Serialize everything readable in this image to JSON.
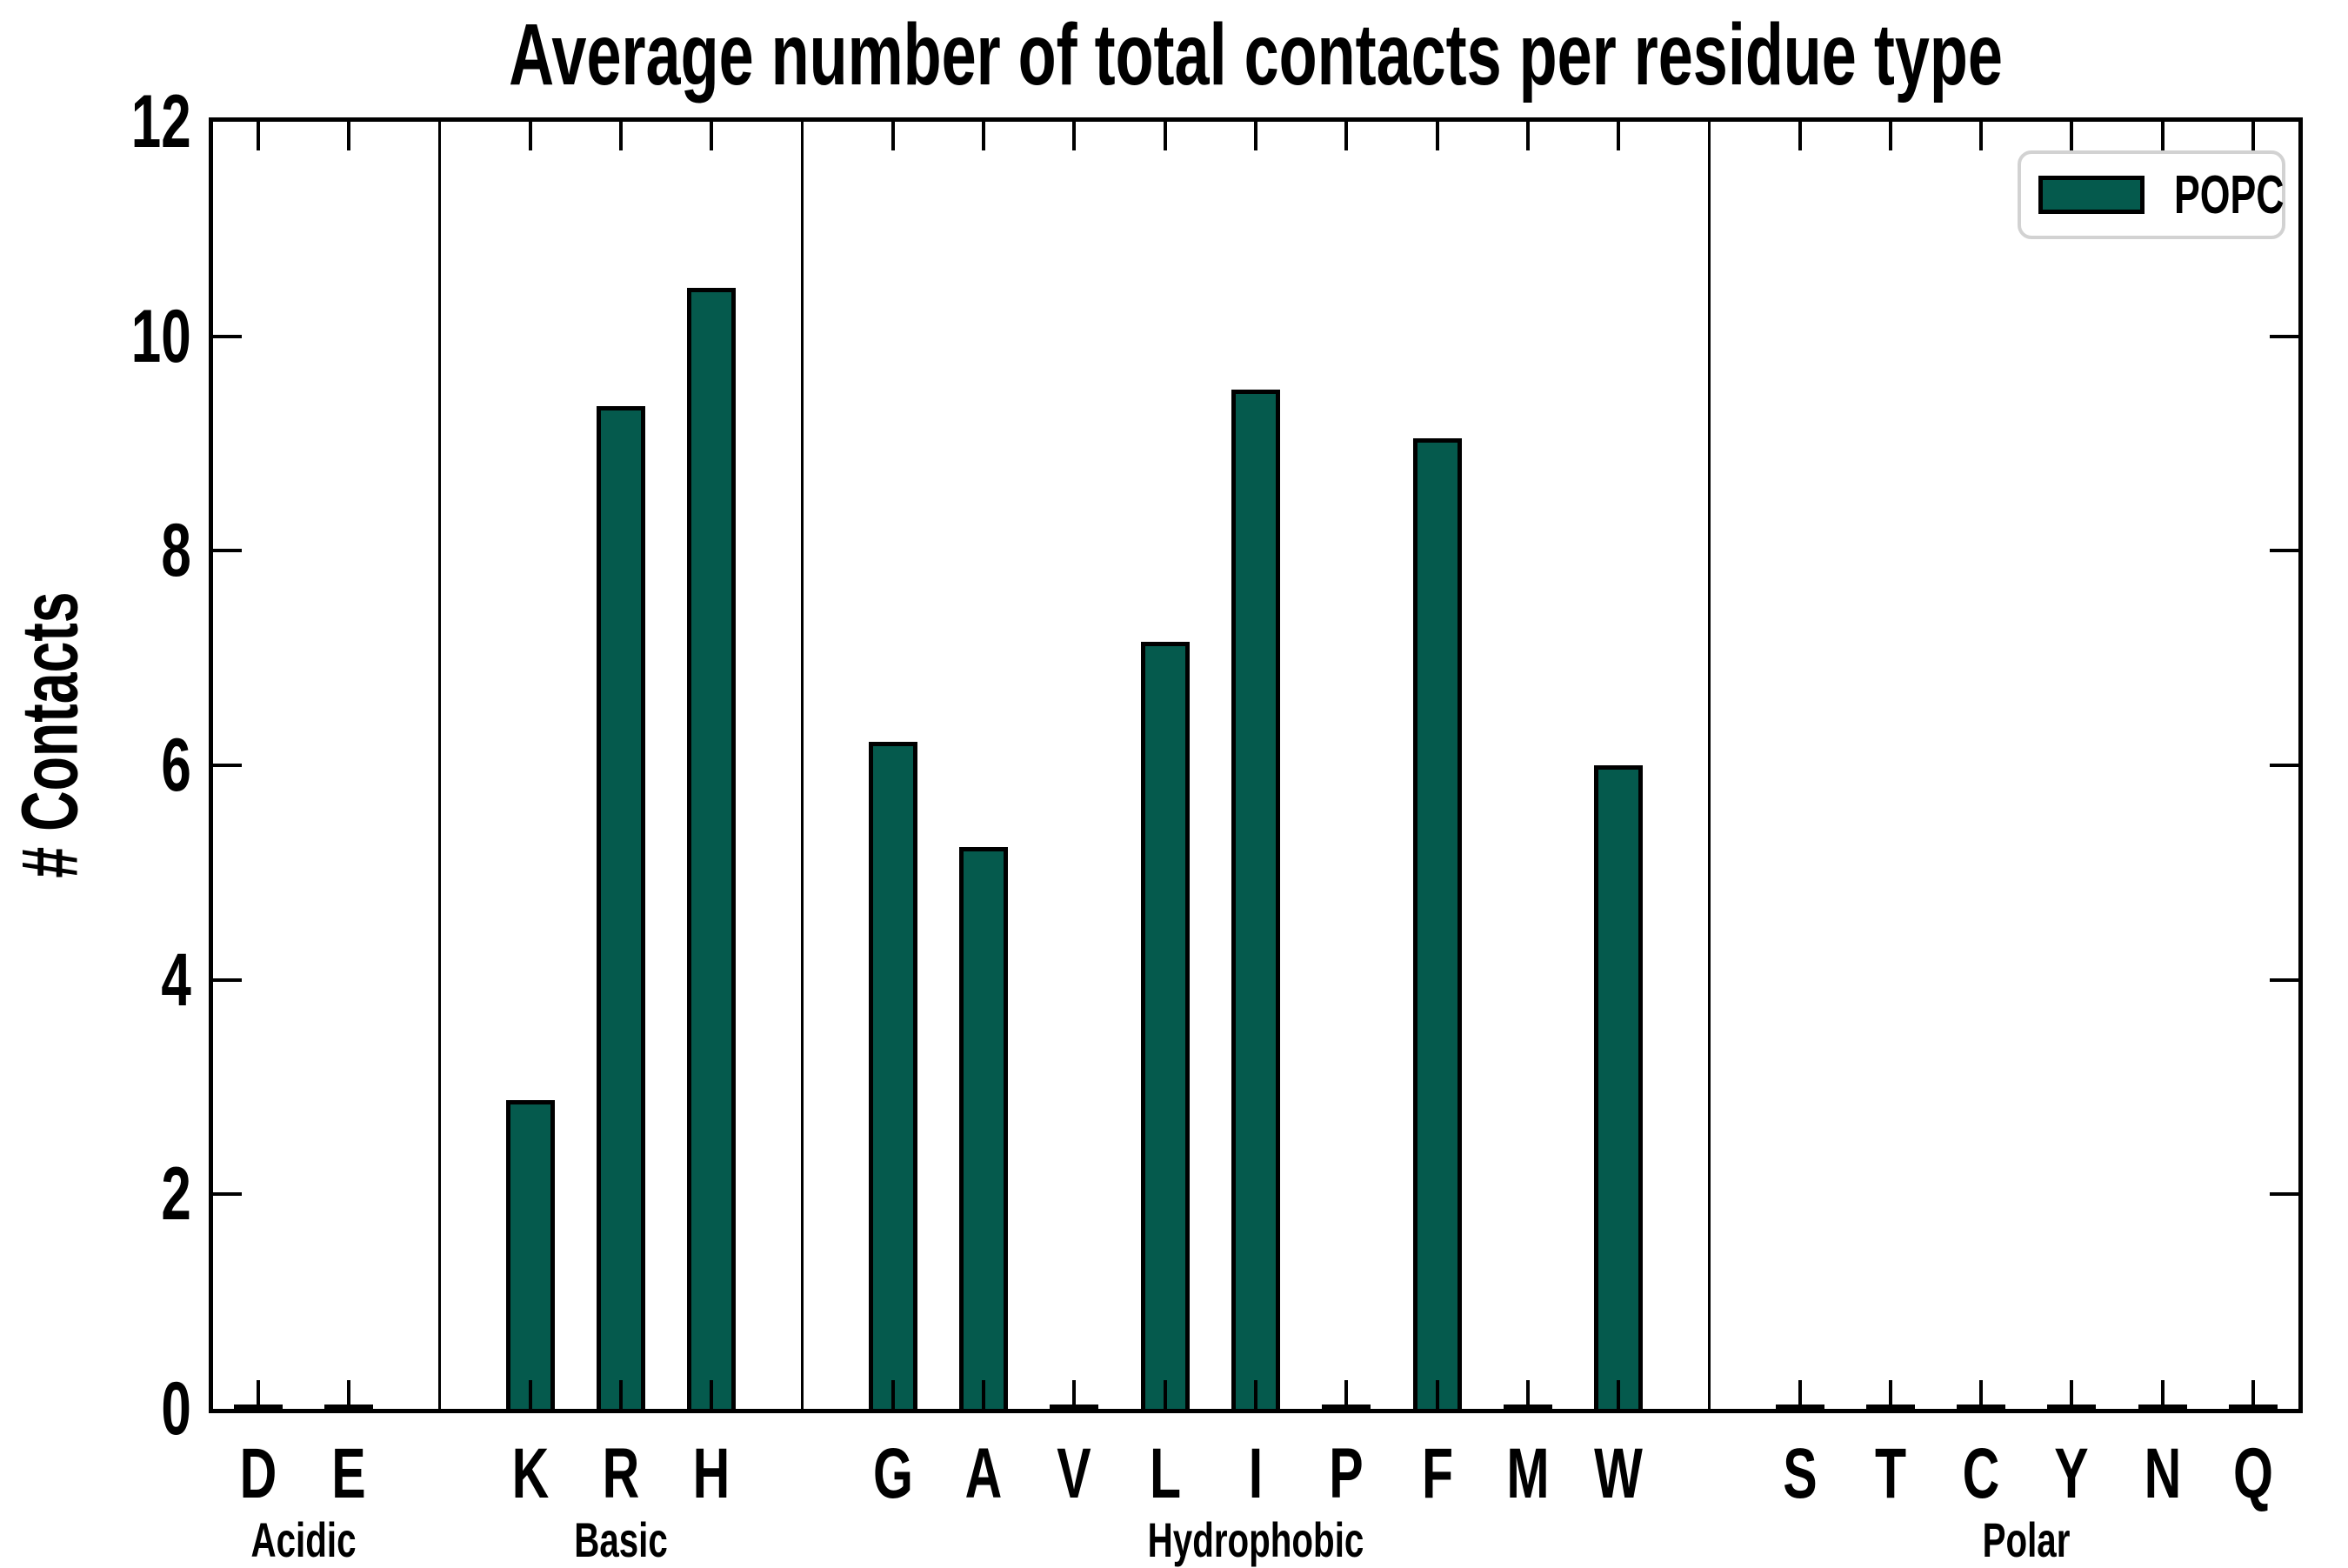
{
  "colors": {
    "bar_fill": "#055A4D",
    "bar_edge": "#000000",
    "axis": "#000000",
    "legend_border": "#D2D2D2",
    "background": "#FFFFFF"
  },
  "chart_data": {
    "type": "bar",
    "title": "Average number of total contacts per residue type",
    "xlabel": "",
    "ylabel": "# Contacts",
    "ylim": [
      0,
      12
    ],
    "yticks": [
      0,
      2,
      4,
      6,
      8,
      10,
      12
    ],
    "grid": false,
    "legend": [
      "POPC"
    ],
    "legend_position": "upper right",
    "group_separator_lines": true,
    "tick_style": "inward ticks on all four spines",
    "groups": [
      {
        "label": "Acidic",
        "categories": [
          "D",
          "E"
        ],
        "values": [
          0,
          0
        ]
      },
      {
        "label": "Basic",
        "categories": [
          "K",
          "R",
          "H"
        ],
        "values": [
          2.88,
          9.35,
          10.45
        ]
      },
      {
        "label": "Hydrophobic",
        "categories": [
          "G",
          "A",
          "V",
          "L",
          "I",
          "P",
          "F",
          "M",
          "W"
        ],
        "values": [
          6.22,
          5.24,
          0,
          7.15,
          9.5,
          0,
          9.05,
          0,
          6.0
        ]
      },
      {
        "label": "Polar",
        "categories": [
          "S",
          "T",
          "C",
          "Y",
          "N",
          "Q"
        ],
        "values": [
          0,
          0,
          0,
          0,
          0,
          0
        ]
      }
    ]
  }
}
